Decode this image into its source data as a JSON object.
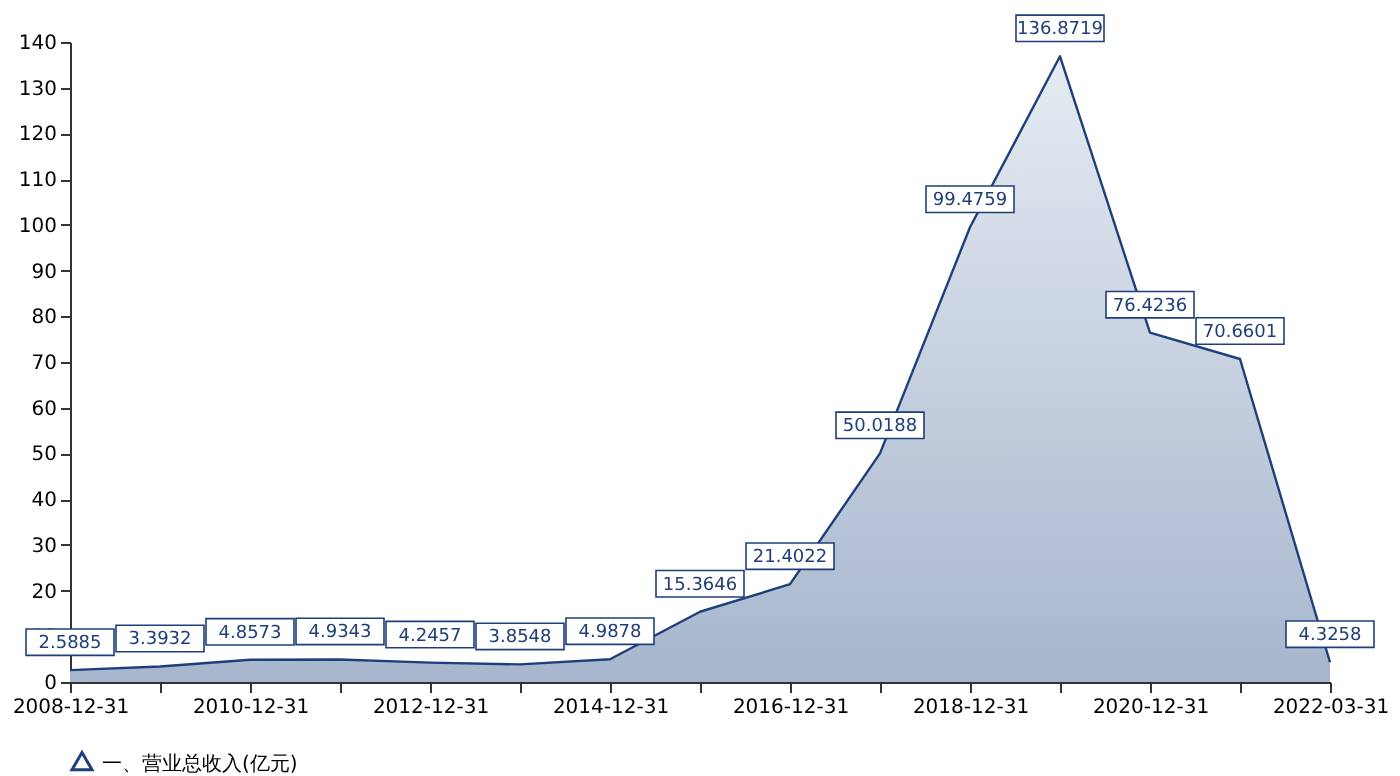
{
  "chart_data": {
    "type": "area",
    "categories": [
      "2008-12-31",
      null,
      "2010-12-31",
      null,
      "2012-12-31",
      null,
      "2014-12-31",
      null,
      "2016-12-31",
      null,
      "2018-12-31",
      null,
      "2020-12-31",
      null,
      "2022-03-31"
    ],
    "series": [
      {
        "name": "一、营业总收入(亿元)",
        "color": "#1f3f7a",
        "values": [
          2.5885,
          3.3932,
          4.8573,
          4.9343,
          4.2457,
          3.8548,
          4.9878,
          15.3646,
          21.4022,
          50.0188,
          99.4759,
          136.8719,
          76.4236,
          70.6601,
          4.3258
        ]
      }
    ],
    "ylim": [
      0,
      140
    ],
    "yticks": [
      0,
      10,
      20,
      30,
      40,
      50,
      60,
      70,
      80,
      90,
      100,
      110,
      120,
      130,
      140
    ],
    "data_labels": true,
    "grid": false,
    "legend": "bottom"
  }
}
